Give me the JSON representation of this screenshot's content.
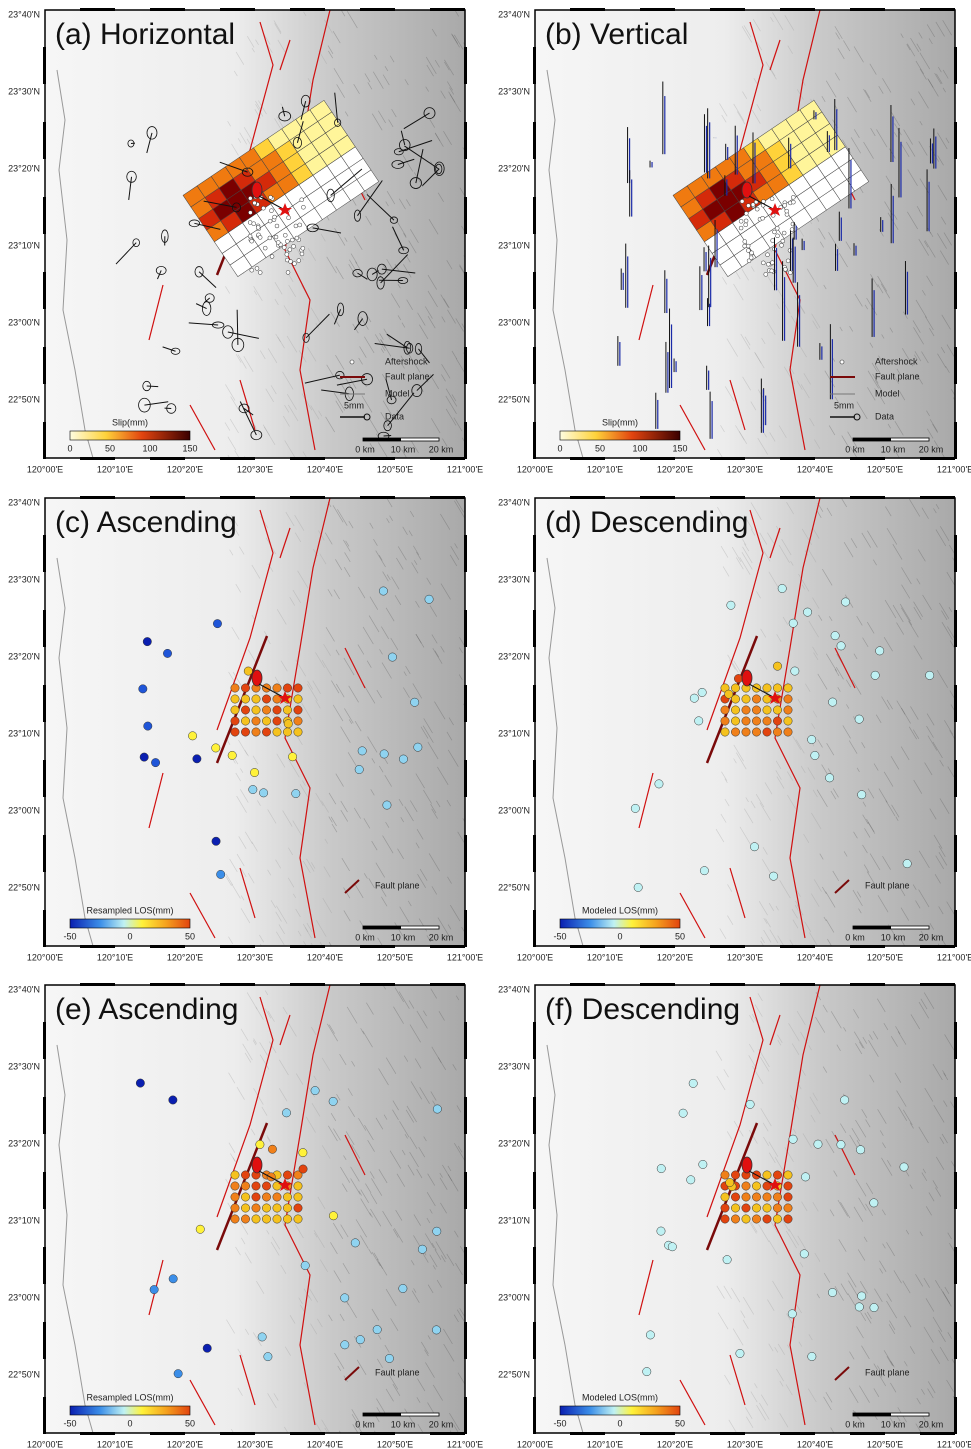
{
  "lat_labels": [
    "23°40'N",
    "23°30'N",
    "23°20'N",
    "23°10'N",
    "23°00'N",
    "22°50'N"
  ],
  "lon_labels": [
    "120°00'E",
    "120°10'E",
    "120°20'E",
    "120°30'E",
    "120°40'E",
    "120°50'E",
    "121°00'E"
  ],
  "panels": [
    {
      "title": "(a) Horizontal",
      "legend": [
        "Aftershock",
        "Fault plane",
        "Model",
        "Data"
      ],
      "legend_note": "5mm",
      "colorbar": {
        "label": "Slip(mm)",
        "ticks": [
          0,
          50,
          100,
          150
        ]
      },
      "scale_bar": [
        "0 km",
        "10 km",
        "20 km"
      ]
    },
    {
      "title": "(b) Vertical",
      "legend": [
        "Aftershock",
        "Fault plane",
        "Model",
        "Data"
      ],
      "legend_note": "5mm",
      "colorbar": {
        "label": "Slip(mm)",
        "ticks": [
          0,
          50,
          100,
          150
        ]
      },
      "scale_bar": [
        "0 km",
        "10 km",
        "20 km"
      ]
    },
    {
      "title": "(c) Ascending",
      "legend": [
        "Fault plane"
      ],
      "colorbar": {
        "label": "Resampled LOS(mm)",
        "ticks": [
          -50,
          0,
          50
        ]
      },
      "scale_bar": [
        "0 km",
        "10 km",
        "20 km"
      ]
    },
    {
      "title": "(d) Descending",
      "legend": [
        "Fault plane"
      ],
      "colorbar": {
        "label": "Modeled LOS(mm)",
        "ticks": [
          -50,
          0,
          50
        ]
      },
      "scale_bar": [
        "0 km",
        "10 km",
        "20 km"
      ]
    },
    {
      "title": "(e) Ascending",
      "legend": [
        "Fault plane"
      ],
      "colorbar": {
        "label": "Resampled LOS(mm)",
        "ticks": [
          -50,
          0,
          50
        ]
      },
      "scale_bar": [
        "0 km",
        "10 km",
        "20 km"
      ]
    },
    {
      "title": "(f) Descending",
      "legend": [
        "Fault plane"
      ],
      "colorbar": {
        "label": "Modeled LOS(mm)",
        "ticks": [
          -50,
          0,
          50
        ]
      },
      "scale_bar": [
        "0 km",
        "10 km",
        "20 km"
      ]
    }
  ]
}
